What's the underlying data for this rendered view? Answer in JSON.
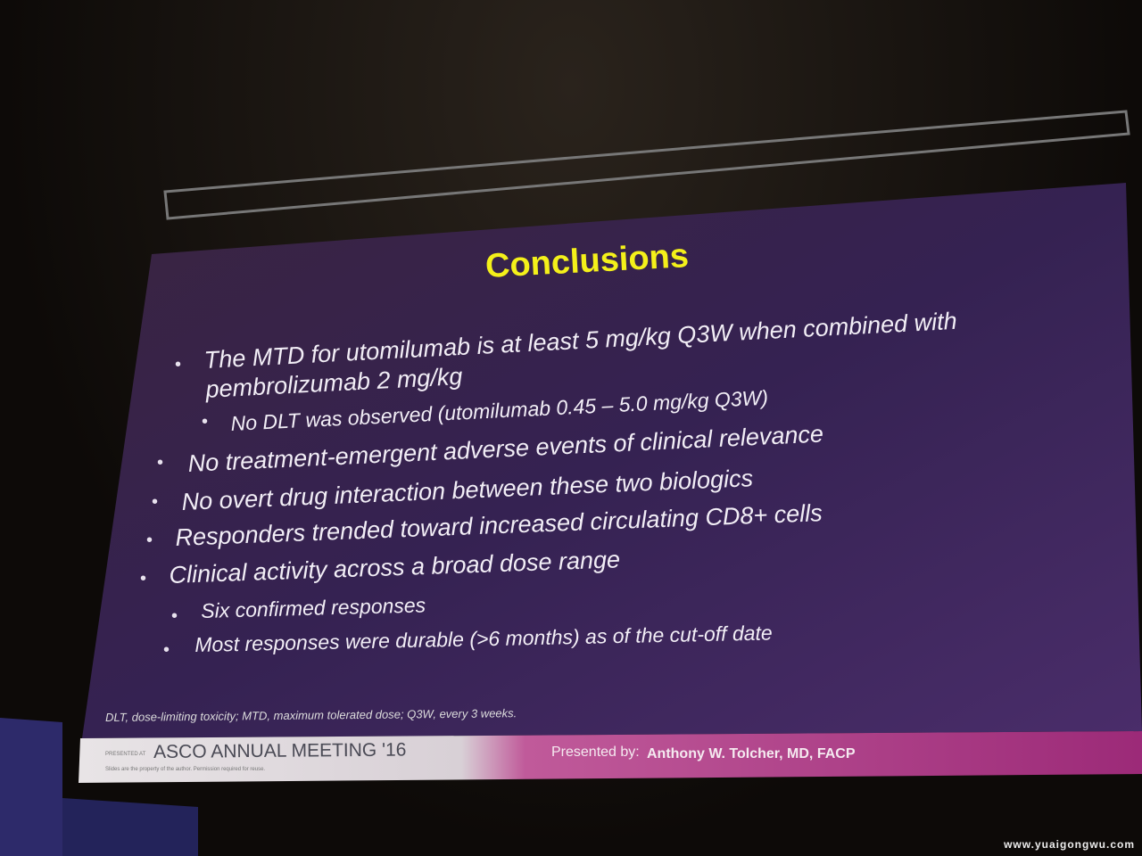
{
  "slide": {
    "title": "Conclusions",
    "bullets": [
      {
        "text": "The MTD for utomilumab is at least 5 mg/kg Q3W when combined with pembrolizumab 2 mg/kg",
        "subs": [
          "No DLT was observed (utomilumab 0.45 – 5.0 mg/kg Q3W)"
        ]
      },
      {
        "text": "No treatment-emergent adverse events of clinical relevance",
        "subs": []
      },
      {
        "text": "No overt drug interaction between these two biologics",
        "subs": []
      },
      {
        "text": "Responders trended toward increased circulating CD8+ cells",
        "subs": []
      },
      {
        "text": "Clinical activity across a broad dose range",
        "subs": [
          "Six confirmed responses",
          "Most responses were durable (>6 months) as of the cut-off date"
        ]
      }
    ],
    "footnote": "DLT, dose-limiting toxicity; MTD, maximum tolerated dose; Q3W, every 3 weeks.",
    "footer": {
      "presented_at": "PRESENTED AT",
      "meeting": "ASCO ANNUAL MEETING '16",
      "rights": "Slides are the property of the author. Permission required for reuse.",
      "presented_by": "Presented by:",
      "presenter": "Anthony W. Tolcher, MD, FACP"
    }
  },
  "watermark": "www.yuaigongwu.com"
}
